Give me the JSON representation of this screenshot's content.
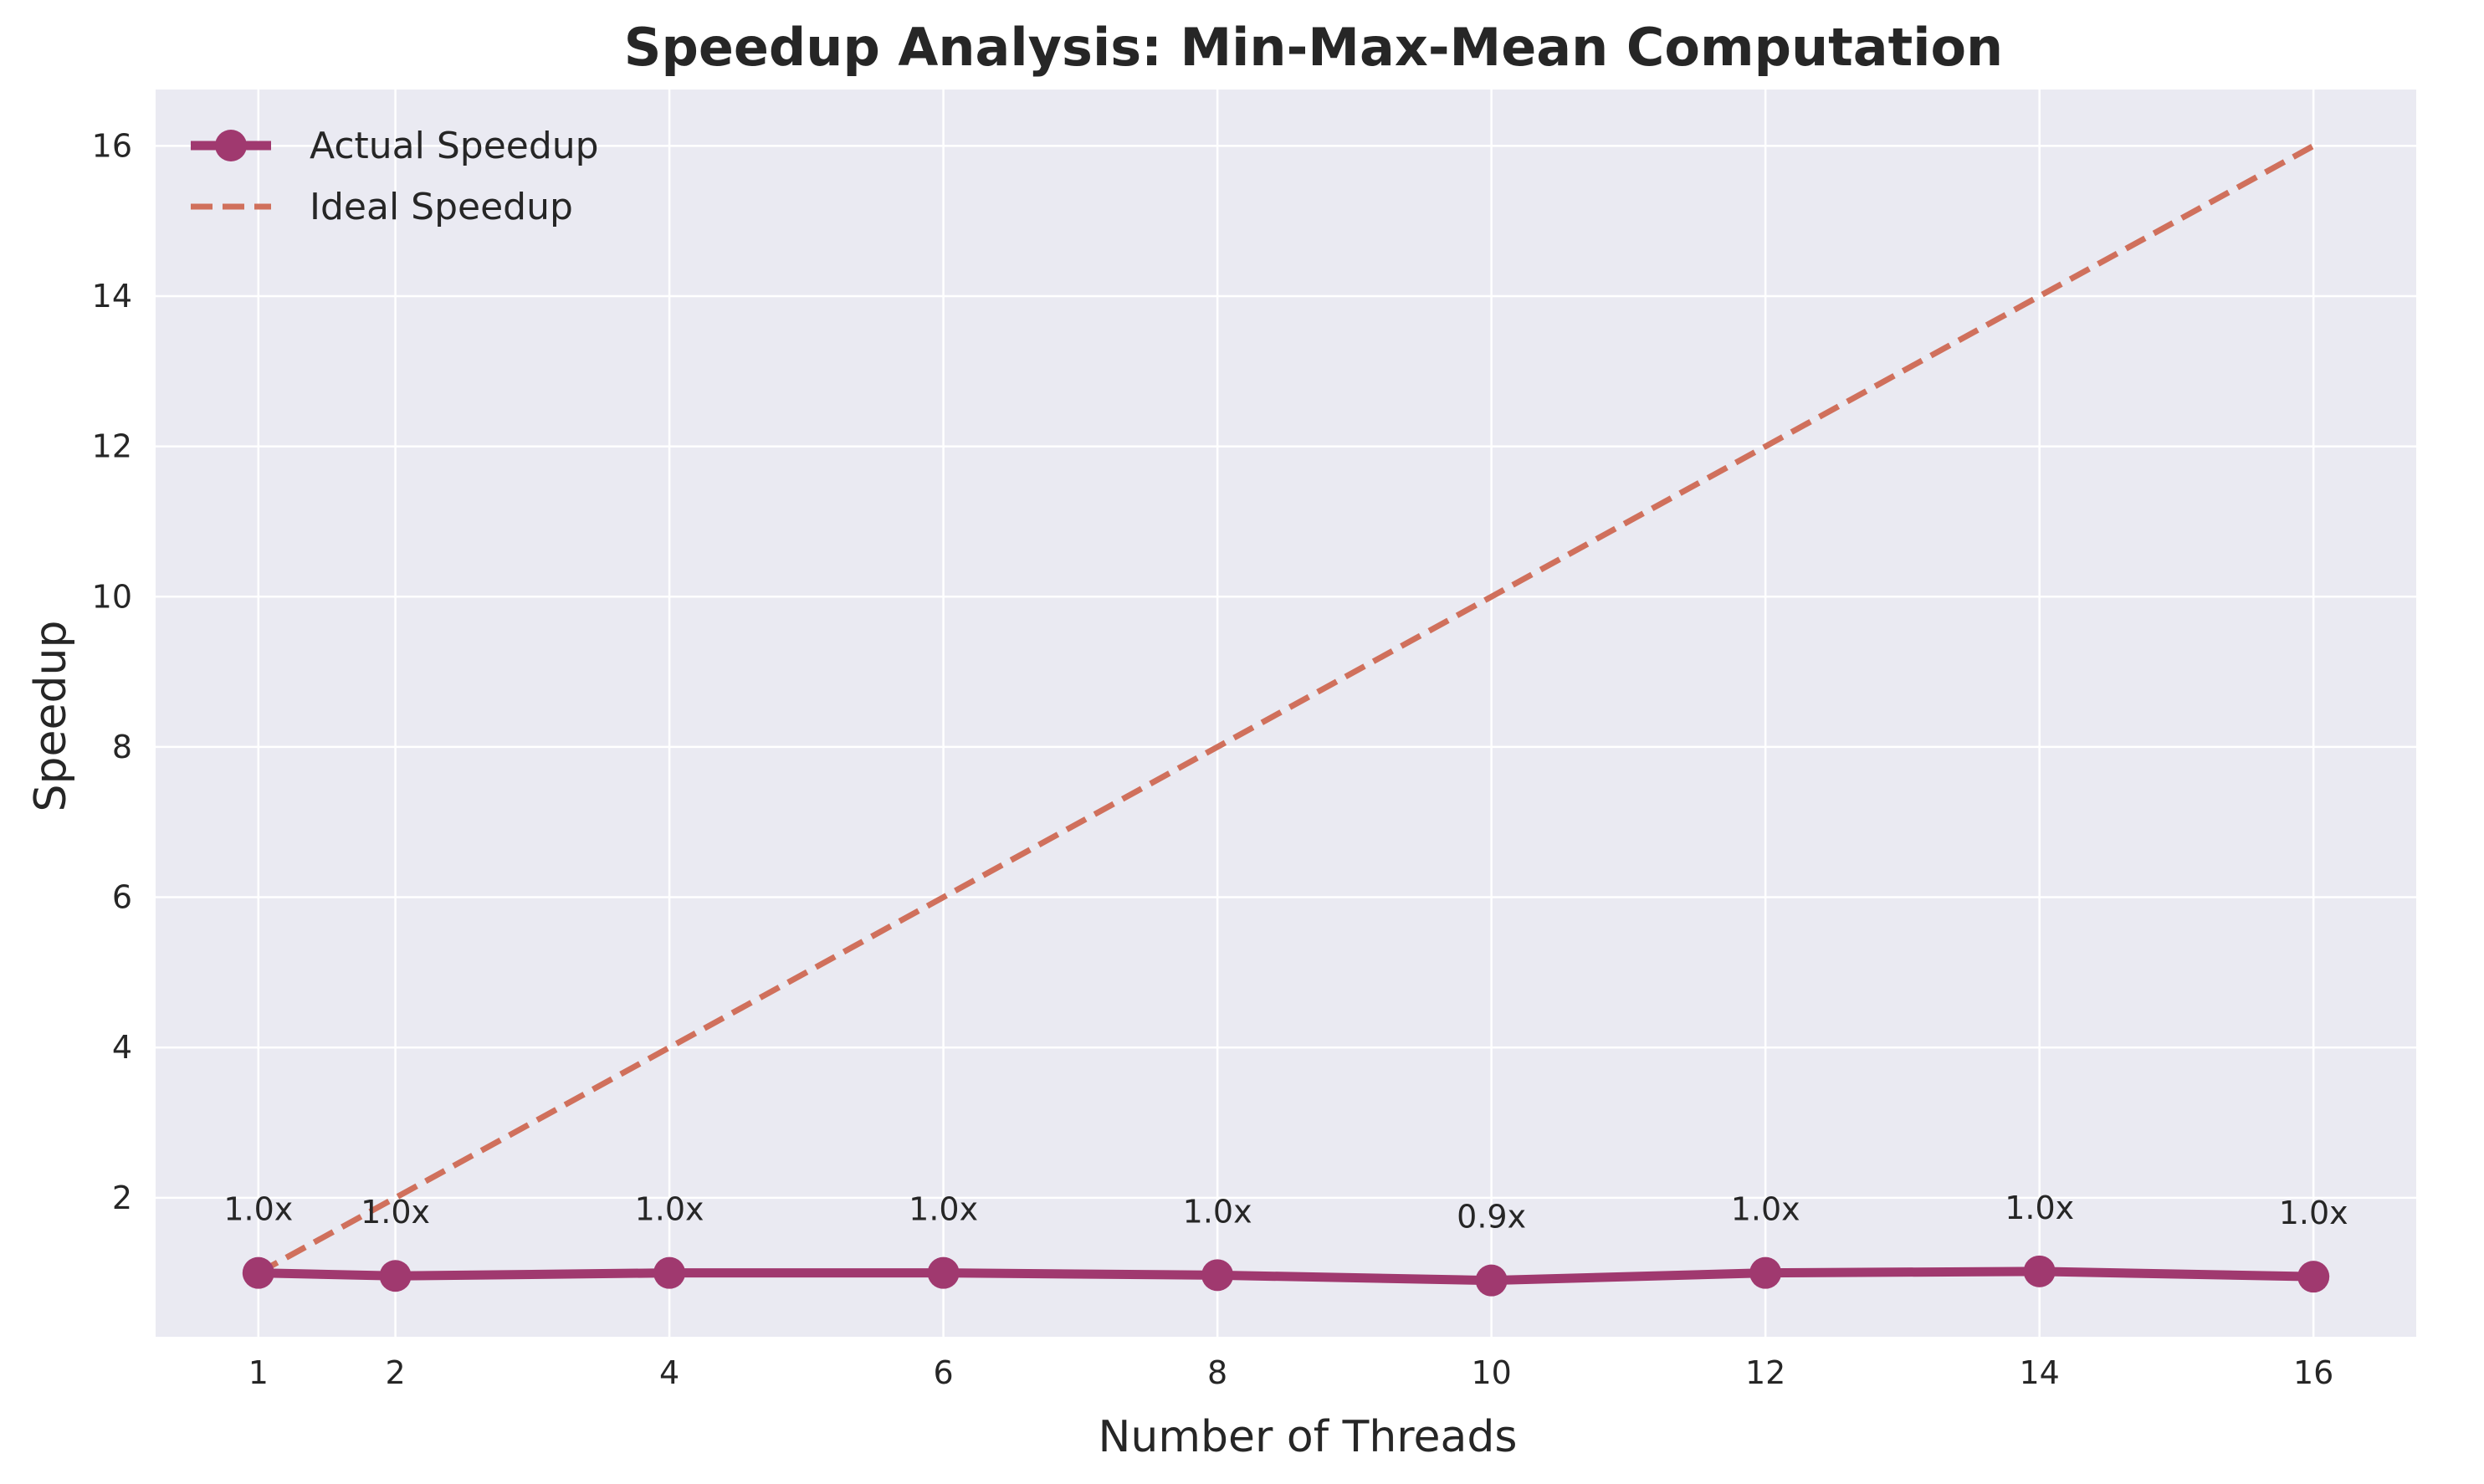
{
  "chart_data": {
    "type": "line",
    "title": "Speedup Analysis: Min-Max-Mean Computation",
    "xlabel": "Number of Threads",
    "ylabel": "Speedup",
    "x": [
      1,
      2,
      4,
      6,
      8,
      10,
      12,
      14,
      16
    ],
    "xticks": [
      1,
      2,
      4,
      6,
      8,
      10,
      12,
      14,
      16
    ],
    "yticks": [
      2,
      4,
      6,
      8,
      10,
      12,
      14,
      16
    ],
    "xlim": [
      0.25,
      16.75
    ],
    "ylim": [
      0.15,
      16.75
    ],
    "grid": true,
    "legend_position": "top-left",
    "series": [
      {
        "name": "Actual Speedup",
        "values": [
          1.0,
          0.96,
          1.0,
          1.0,
          0.97,
          0.9,
          1.0,
          1.02,
          0.95
        ],
        "labels": [
          "1.0x",
          "1.0x",
          "1.0x",
          "1.0x",
          "1.0x",
          "0.9x",
          "1.0x",
          "1.0x",
          "1.0x"
        ],
        "color": "#a0396f",
        "style": "solid-marker"
      },
      {
        "name": "Ideal Speedup",
        "values": [
          1,
          2,
          4,
          6,
          8,
          10,
          12,
          14,
          16
        ],
        "color": "#d0705c",
        "style": "dashed"
      }
    ],
    "background_color": "#eaeaf2",
    "grid_color": "#ffffff"
  }
}
